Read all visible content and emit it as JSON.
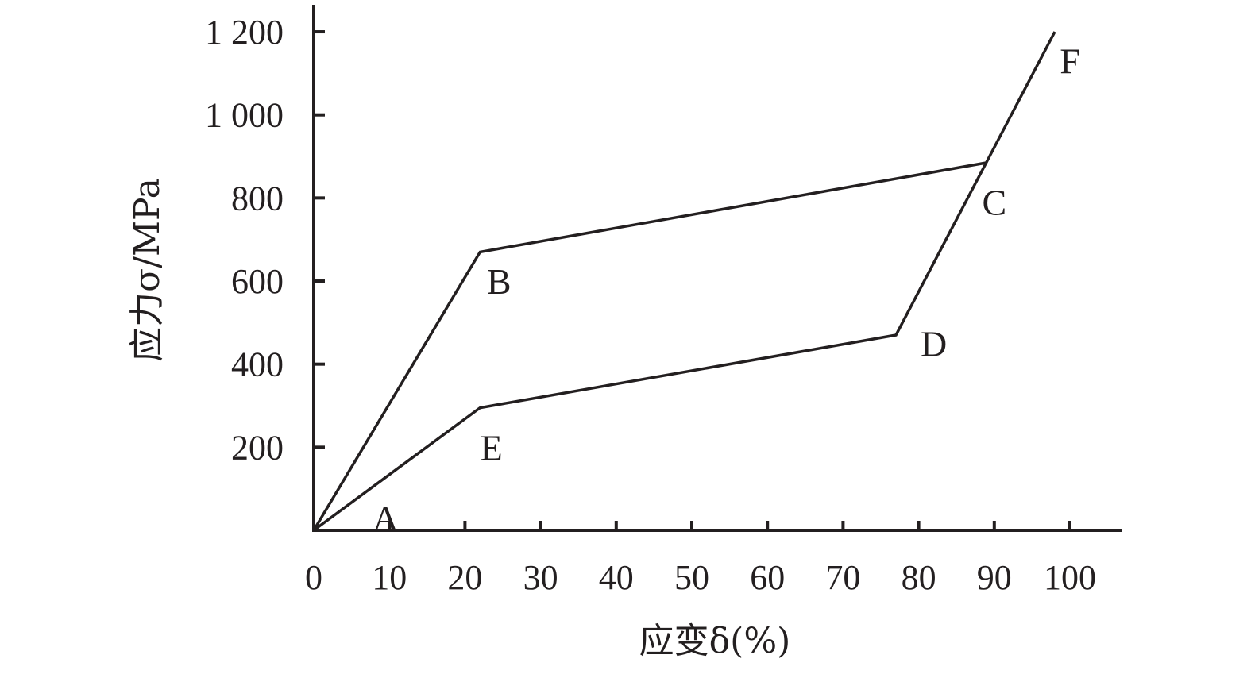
{
  "chart_data": {
    "type": "line",
    "title": "",
    "xlabel": "应变δ(%)",
    "ylabel": "应力σ/MPa",
    "xlim": [
      0,
      107
    ],
    "ylim": [
      0,
      1200
    ],
    "x_ticks": [
      0,
      10,
      20,
      30,
      40,
      50,
      60,
      70,
      80,
      90,
      100
    ],
    "x_tick_labels": [
      "0",
      "10",
      "20",
      "30",
      "40",
      "50",
      "60",
      "70",
      "80",
      "90",
      "100"
    ],
    "y_ticks": [
      200,
      400,
      600,
      800,
      1000,
      1200
    ],
    "y_tick_labels": [
      "200",
      "400",
      "600",
      "800",
      "1 000",
      "1 200"
    ],
    "grid": false,
    "series": [
      {
        "points": [
          {
            "x": 0,
            "y": 0
          },
          {
            "x": 22,
            "y": 670
          },
          {
            "x": 89,
            "y": 885
          }
        ]
      },
      {
        "points": [
          {
            "x": 0,
            "y": 0
          },
          {
            "x": 22,
            "y": 295
          },
          {
            "x": 77,
            "y": 470
          },
          {
            "x": 98,
            "y": 1200
          }
        ]
      }
    ],
    "annotations": [
      {
        "text": "A",
        "x": 9.5,
        "y": 30
      },
      {
        "text": "B",
        "x": 24.5,
        "y": 600
      },
      {
        "text": "C",
        "x": 90,
        "y": 790
      },
      {
        "text": "D",
        "x": 82,
        "y": 450
      },
      {
        "text": "E",
        "x": 23.5,
        "y": 200
      },
      {
        "text": "F",
        "x": 100,
        "y": 1130
      }
    ]
  }
}
